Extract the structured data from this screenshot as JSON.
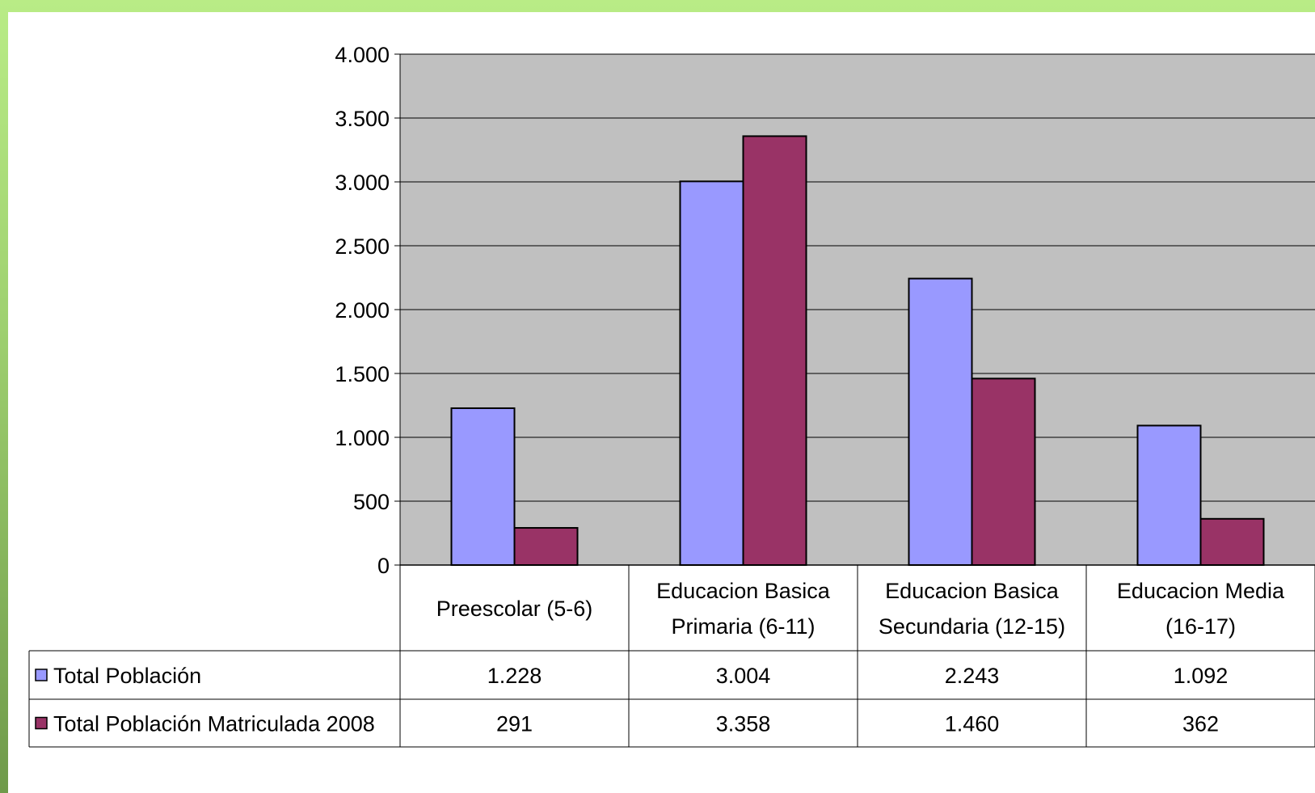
{
  "chart_data": {
    "type": "bar",
    "categories": [
      [
        "Preescolar (5-6)"
      ],
      [
        "Educacion Basica",
        "Primaria (6-11)"
      ],
      [
        "Educacion Basica",
        "Secundaria (12-15)"
      ],
      [
        "Educacion Media",
        "(16-17)"
      ]
    ],
    "series": [
      {
        "name": "Total Población",
        "values": [
          1228,
          3004,
          2243,
          1092
        ],
        "value_labels": [
          "1.228",
          "3.004",
          "2.243",
          "1.092"
        ],
        "color": "#9999ff"
      },
      {
        "name": "Total Población Matriculada 2008",
        "values": [
          291,
          3358,
          1460,
          362
        ],
        "value_labels": [
          "291",
          "3.358",
          "1.460",
          "362"
        ],
        "color": "#993366"
      }
    ],
    "ylim": [
      0,
      4000
    ],
    "yticks": [
      0,
      500,
      1000,
      1500,
      2000,
      2500,
      3000,
      3500,
      4000
    ],
    "ytick_labels": [
      "0",
      "500",
      "1.000",
      "1.500",
      "2.000",
      "2.500",
      "3.000",
      "3.500",
      "4.000"
    ],
    "grid": true,
    "plot_background": "#c0c0c0",
    "legend": "data-table",
    "data_table": true
  }
}
